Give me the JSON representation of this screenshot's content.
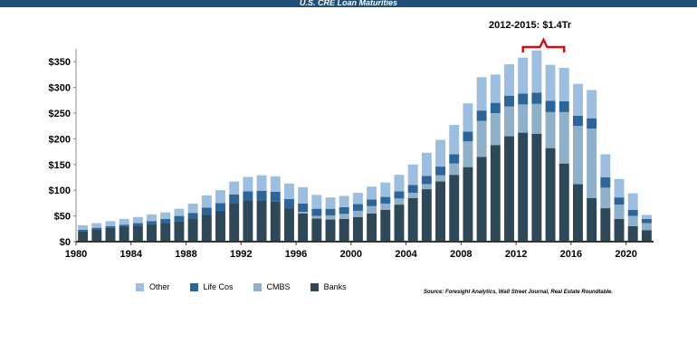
{
  "chart_data": {
    "type": "bar",
    "stacked": true,
    "title": "U.S. CRE Loan Maturities",
    "annotation": "2012-2015: $1.4Tr",
    "annotation_range": [
      2012,
      2015
    ],
    "ylim": [
      0,
      375
    ],
    "yticks": [
      0,
      50,
      100,
      150,
      200,
      250,
      300,
      350
    ],
    "ytick_labels": [
      "$0",
      "$50",
      "$100",
      "$150",
      "$200",
      "$250",
      "$300",
      "$350"
    ],
    "xtick_labels": [
      "1980",
      "1984",
      "1988",
      "1992",
      "1996",
      "2000",
      "2004",
      "2008",
      "2012",
      "2016",
      "2020"
    ],
    "categories": [
      "1980",
      "1981",
      "1982",
      "1983",
      "1984",
      "1985",
      "1986",
      "1987",
      "1988",
      "1989",
      "1990",
      "1991",
      "1992",
      "1993",
      "1994",
      "1995",
      "1996",
      "1997",
      "1998",
      "1999",
      "2000",
      "2001",
      "2002",
      "2003",
      "2004",
      "2005",
      "2006",
      "2007",
      "2008",
      "2009",
      "2010",
      "2011",
      "2012",
      "2013",
      "2014",
      "2015",
      "2016",
      "2017",
      "2018",
      "2019",
      "2020",
      "2021"
    ],
    "series": [
      {
        "name": "Banks",
        "color": "#2f4858",
        "values": [
          20,
          24,
          27,
          29,
          31,
          34,
          36,
          40,
          44,
          52,
          60,
          75,
          80,
          80,
          78,
          65,
          55,
          45,
          43,
          44,
          48,
          55,
          62,
          72,
          85,
          102,
          117,
          130,
          145,
          165,
          188,
          205,
          212,
          210,
          182,
          152,
          112,
          85,
          65,
          44,
          30,
          22
        ]
      },
      {
        "name": "CMBS",
        "color": "#8fb0c8",
        "values": [
          0,
          0,
          0,
          0,
          0,
          0,
          0,
          0,
          0,
          0,
          0,
          0,
          0,
          0,
          0,
          0,
          3,
          5,
          8,
          10,
          12,
          14,
          12,
          12,
          10,
          10,
          12,
          22,
          50,
          70,
          62,
          58,
          55,
          58,
          70,
          100,
          113,
          135,
          40,
          28,
          20,
          14
        ]
      },
      {
        "name": "Life Cos",
        "color": "#2e6599",
        "values": [
          3,
          3,
          3,
          4,
          5,
          6,
          8,
          10,
          12,
          14,
          15,
          17,
          18,
          19,
          19,
          18,
          16,
          14,
          13,
          13,
          13,
          13,
          13,
          14,
          15,
          16,
          17,
          18,
          19,
          20,
          20,
          21,
          21,
          22,
          22,
          21,
          20,
          20,
          20,
          14,
          12,
          8
        ]
      },
      {
        "name": "Other",
        "color": "#9dbedf",
        "values": [
          9,
          9,
          10,
          11,
          12,
          13,
          13,
          14,
          18,
          24,
          25,
          25,
          28,
          30,
          30,
          30,
          32,
          27,
          22,
          22,
          22,
          25,
          28,
          32,
          40,
          45,
          52,
          57,
          55,
          65,
          55,
          61,
          70,
          82,
          70,
          65,
          62,
          55,
          45,
          36,
          32,
          8
        ]
      }
    ],
    "legend": [
      "Other",
      "Life Cos",
      "CMBS",
      "Banks"
    ],
    "legend_position": "bottom-left",
    "source": "Source: Foresight Analytics, Wall Street Journal, Real Estate Roundtable."
  }
}
